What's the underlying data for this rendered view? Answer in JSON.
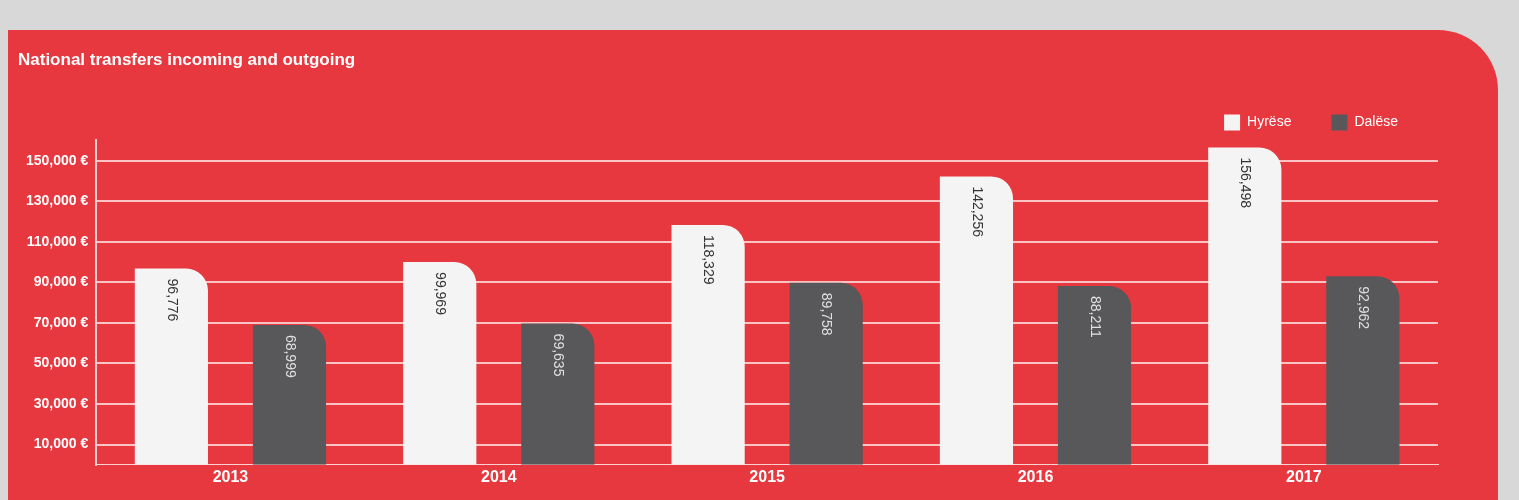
{
  "chart_data": {
    "type": "bar",
    "title": "National transfers incoming and outgoing",
    "categories": [
      "2013",
      "2014",
      "2015",
      "2016",
      "2017"
    ],
    "series": [
      {
        "name": "Hyrëse",
        "color": "#f4f4f4",
        "values": [
          96776,
          99969,
          118329,
          142256,
          156498
        ],
        "value_labels": [
          "96,776",
          "99,969",
          "118,329",
          "142,256",
          "156,498"
        ]
      },
      {
        "name": "Dalëse",
        "color": "#58585a",
        "values": [
          68999,
          69635,
          89758,
          88211,
          92962
        ],
        "value_labels": [
          "68,999",
          "69,635",
          "89,758",
          "88,211",
          "92,962"
        ]
      }
    ],
    "ylim": [
      0,
      160000
    ],
    "yticks": [
      {
        "value": 10000,
        "label": "10,000 €"
      },
      {
        "value": 30000,
        "label": "30,000 €"
      },
      {
        "value": 50000,
        "label": "50,000 €"
      },
      {
        "value": 70000,
        "label": "70,000 €"
      },
      {
        "value": 90000,
        "label": "90,000 €"
      },
      {
        "value": 110000,
        "label": "110,000 €"
      },
      {
        "value": 130000,
        "label": "130,000 €"
      },
      {
        "value": 150000,
        "label": "150,000 €"
      }
    ],
    "grid": "y",
    "legend": "top right"
  }
}
